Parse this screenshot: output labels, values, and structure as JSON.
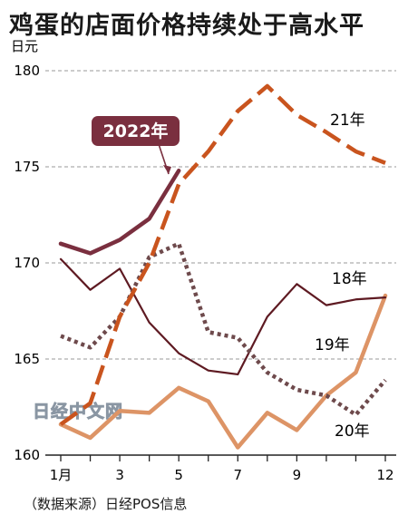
{
  "title": "鸡蛋的店面价格持续处于高水平",
  "source": "（数据来源）日经POS信息",
  "watermark": "日经中文网",
  "chart_data": {
    "type": "line",
    "title": "鸡蛋的店面价格持续处于高水平",
    "ylabel": "日元",
    "xlabel": "",
    "ylim": [
      160,
      180
    ],
    "yticks": [
      160,
      165,
      170,
      175,
      180
    ],
    "x": [
      1,
      2,
      3,
      4,
      5,
      6,
      7,
      8,
      9,
      10,
      11,
      12
    ],
    "xticks": [
      1,
      3,
      5,
      7,
      9,
      12
    ],
    "xtick_labels": [
      "1月",
      "3",
      "5",
      "7",
      "9",
      "12"
    ],
    "grid": "horizontal dashed",
    "series": [
      {
        "name": "2022年",
        "color": "#7a2f3f",
        "style": "solid-thick",
        "values": [
          171.0,
          170.5,
          171.2,
          172.3,
          174.8,
          null,
          null,
          null,
          null,
          null,
          null,
          null
        ]
      },
      {
        "name": "21年",
        "color": "#c9541e",
        "style": "long-dash",
        "values": [
          161.6,
          162.7,
          167.2,
          170.0,
          174.1,
          175.8,
          177.9,
          179.2,
          177.7,
          176.8,
          175.8,
          175.2
        ]
      },
      {
        "name": "18年",
        "color": "#5e1a22",
        "style": "solid-thin",
        "values": [
          170.2,
          168.6,
          169.7,
          166.9,
          165.3,
          164.4,
          164.2,
          167.2,
          168.9,
          167.8,
          168.1,
          168.2
        ]
      },
      {
        "name": "19年",
        "color": "#6e4a4c",
        "style": "dotted",
        "values": [
          166.2,
          165.6,
          167.2,
          170.3,
          171.0,
          166.4,
          166.1,
          164.3,
          163.4,
          163.1,
          162.1,
          163.9
        ]
      },
      {
        "name": "20年",
        "color": "#dd9466",
        "style": "solid-thick",
        "values": [
          161.6,
          160.9,
          162.3,
          162.2,
          163.5,
          162.8,
          160.4,
          162.2,
          161.3,
          163.1,
          164.3,
          168.3
        ]
      }
    ]
  }
}
